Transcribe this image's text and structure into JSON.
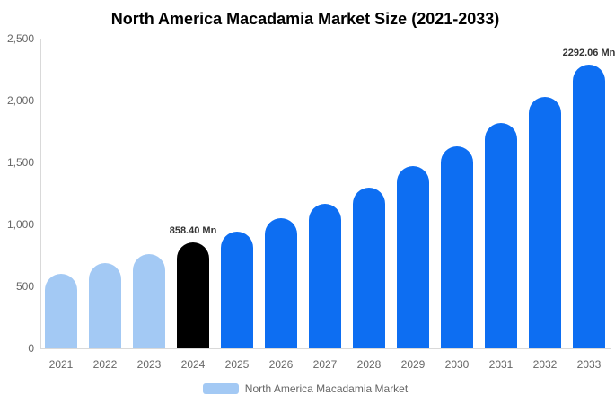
{
  "title": "North America Macadamia Market Size (2021-2033)",
  "chart_data": {
    "type": "bar",
    "title": "North America Macadamia Market Size (2021-2033)",
    "categories": [
      "2021",
      "2022",
      "2023",
      "2024",
      "2025",
      "2026",
      "2027",
      "2028",
      "2029",
      "2030",
      "2031",
      "2032",
      "2033"
    ],
    "values": [
      605,
      690,
      760,
      858.4,
      940,
      1050,
      1170,
      1300,
      1470,
      1630,
      1820,
      2030,
      2292.06
    ],
    "bar_colors": [
      "#a3c9f4",
      "#a3c9f4",
      "#a3c9f4",
      "#000000",
      "#0d6ef2",
      "#0d6ef2",
      "#0d6ef2",
      "#0d6ef2",
      "#0d6ef2",
      "#0d6ef2",
      "#0d6ef2",
      "#0d6ef2",
      "#0d6ef2"
    ],
    "xlabel": "",
    "ylabel": "",
    "ylim": [
      0,
      2500
    ],
    "yticks": [
      "0",
      "500",
      "1,000",
      "1,500",
      "2,000",
      "2,500"
    ],
    "grid": false,
    "legend": {
      "position": "bottom",
      "label": "North America Macadamia Market",
      "swatch_color": "#a3c9f4"
    },
    "annotations": [
      {
        "index": 3,
        "text": "858.40 Mn"
      },
      {
        "index": 12,
        "text": "2292.06 Mn"
      }
    ]
  },
  "colors": {
    "light_blue": "#a3c9f4",
    "blue": "#0d6ef2",
    "black": "#000000",
    "axis_line": "#d9d9d9",
    "tick_text": "#666666",
    "annotation_text": "#333333",
    "title_text": "#000000",
    "background": "#ffffff"
  }
}
